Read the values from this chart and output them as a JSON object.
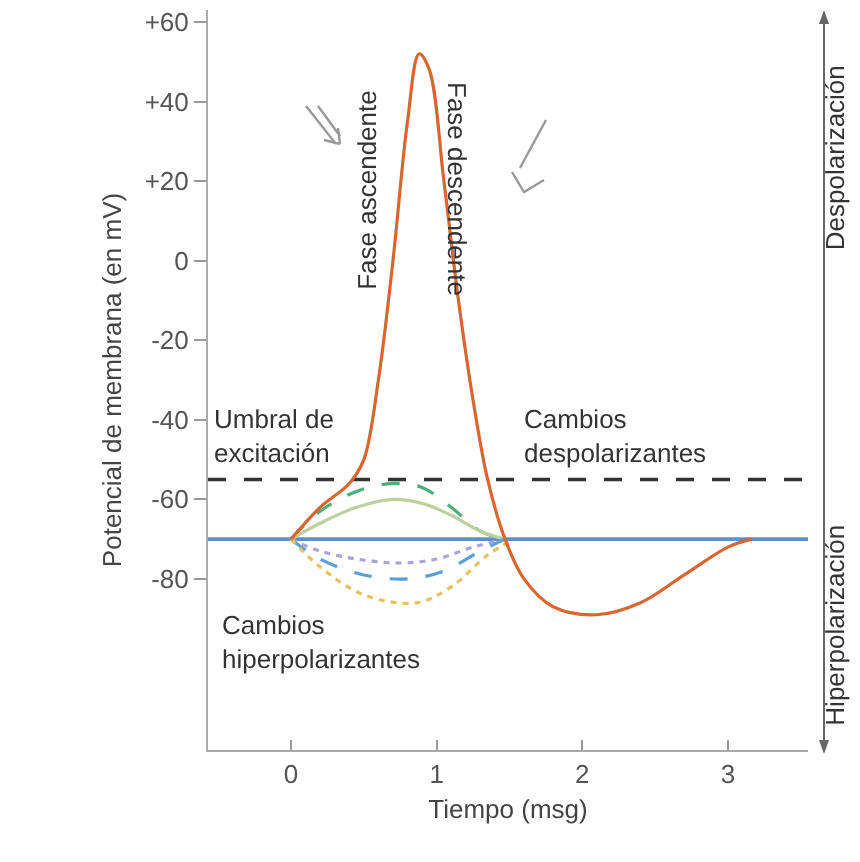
{
  "chart_data": {
    "type": "line",
    "xlabel": "Tiempo (msg)",
    "ylabel": "Potencial de membrana (en mV)",
    "xlim": [
      -0.57,
      3.55
    ],
    "ylim": [
      -123,
      63
    ],
    "xticks": [
      0,
      1,
      2,
      3
    ],
    "yticks": [
      {
        "value": 60,
        "label": "+60"
      },
      {
        "value": 40,
        "label": "+40"
      },
      {
        "value": 20,
        "label": "+20"
      },
      0,
      -20,
      -40,
      -60,
      -80
    ],
    "grid": false,
    "marker": "none",
    "series": [
      {
        "color": "#d9662e",
        "line_style": "solid",
        "x": [
          0,
          0.2,
          0.4,
          0.5,
          0.6,
          0.7,
          0.8,
          0.88,
          0.95,
          1.05,
          1.15,
          1.25,
          1.35,
          1.47,
          1.6,
          1.8,
          2.1,
          2.4,
          2.7,
          3.0,
          3.16
        ],
        "values": [
          -70,
          -62,
          -56,
          -50,
          -30,
          0,
          35,
          52,
          48,
          20,
          -10,
          -35,
          -55,
          -70,
          -80,
          -87,
          -89,
          -86,
          -79,
          -72,
          -70
        ]
      },
      {
        "color": "#4caf7a",
        "line_style": "dashed",
        "x": [
          0,
          0.2,
          0.45,
          0.7,
          0.9,
          1.1,
          1.3,
          1.47
        ],
        "values": [
          -70,
          -63,
          -58,
          -56,
          -57,
          -62,
          -68,
          -70
        ]
      },
      {
        "color": "#bcd19e",
        "line_style": "solid",
        "x": [
          0,
          0.2,
          0.45,
          0.7,
          0.9,
          1.1,
          1.3,
          1.47
        ],
        "values": [
          -70,
          -66,
          -62,
          -60,
          -61,
          -64,
          -68,
          -70
        ]
      },
      {
        "color": "#a9a5d8",
        "line_style": "dotted",
        "x": [
          0,
          0.2,
          0.45,
          0.73,
          1.0,
          1.25,
          1.47
        ],
        "values": [
          -70,
          -73,
          -75,
          -76,
          -75,
          -72,
          -70
        ]
      },
      {
        "color": "#5aa0d8",
        "line_style": "dashed",
        "x": [
          0,
          0.2,
          0.5,
          0.8,
          1.05,
          1.3,
          1.47
        ],
        "values": [
          -70,
          -75,
          -79,
          -80,
          -78,
          -73,
          -70
        ]
      },
      {
        "color": "#e8c060",
        "line_style": "dotted",
        "x": [
          0,
          0.2,
          0.5,
          0.86,
          1.1,
          1.35,
          1.53
        ],
        "values": [
          -70,
          -77,
          -84,
          -86,
          -82,
          -74,
          -70
        ]
      }
    ],
    "ref_lines": [
      {
        "axis": "y",
        "value": -55,
        "color": "#333333",
        "line_style": "dashed"
      },
      {
        "axis": "y",
        "value": -70,
        "color": "#5b8fd6",
        "line_style": "solid"
      }
    ],
    "annotations": [
      "Fase ascendente",
      "Fase descendente",
      "Umbral de\nexcitación",
      "Cambios\ndespolarizantes",
      "Cambios\nhiperpolarizantes",
      "Despolarización",
      "Hiperpolarización"
    ]
  }
}
